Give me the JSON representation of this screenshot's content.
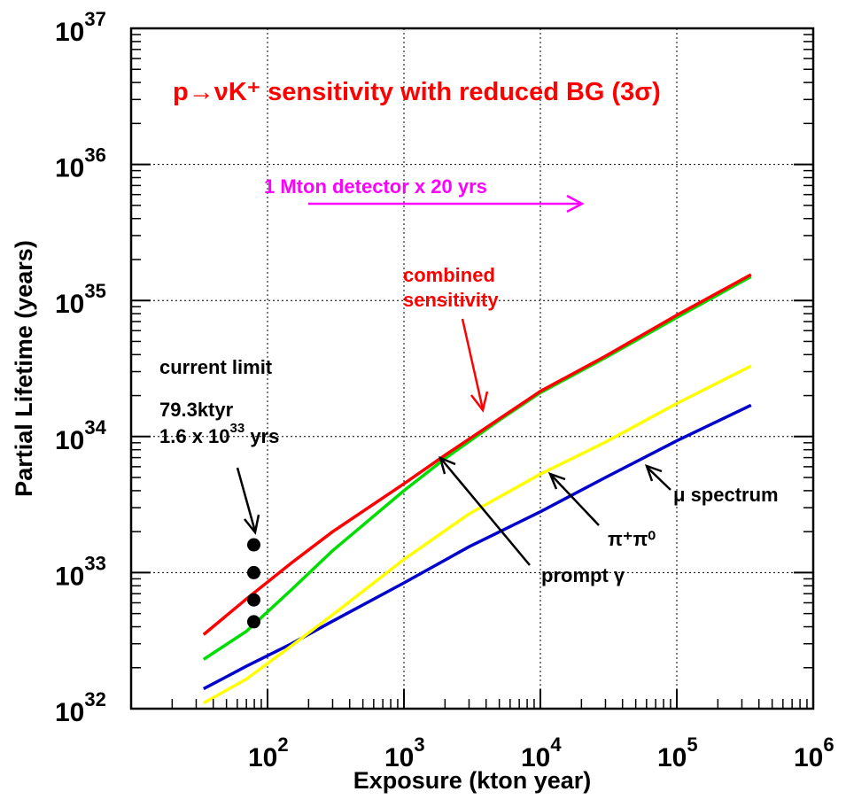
{
  "chart_data": {
    "type": "line",
    "title": "p→νK⁺ sensitivity with reduced BG (3σ)",
    "title_color": "#ff0000",
    "xlabel": "Exposure (kton year)",
    "ylabel": "Partial Lifetime (years)",
    "x_scale": "log",
    "y_scale": "log",
    "xlim": [
      10,
      1000000
    ],
    "ylim": [
      1e+32,
      1e+37
    ],
    "grid": true,
    "x_ticks": [
      {
        "value": 100,
        "base": "10",
        "exp": "2"
      },
      {
        "value": 1000,
        "base": "10",
        "exp": "3"
      },
      {
        "value": 10000,
        "base": "10",
        "exp": "4"
      },
      {
        "value": 100000,
        "base": "10",
        "exp": "5"
      },
      {
        "value": 1000000,
        "base": "10",
        "exp": "6"
      }
    ],
    "y_ticks": [
      {
        "value": 1e+32,
        "base": "10",
        "exp": "32"
      },
      {
        "value": 1e+33,
        "base": "10",
        "exp": "33"
      },
      {
        "value": 1e+34,
        "base": "10",
        "exp": "34"
      },
      {
        "value": 1e+35,
        "base": "10",
        "exp": "35"
      },
      {
        "value": 1e+36,
        "base": "10",
        "exp": "36"
      },
      {
        "value": 1e+37,
        "base": "10",
        "exp": "37"
      }
    ],
    "series": [
      {
        "color": "#0000cc",
        "x": [
          34,
          70,
          150,
          300,
          1000,
          3000,
          10000,
          30000,
          100000,
          350000
        ],
        "y": [
          1.4e+32,
          2.05e+32,
          3e+32,
          4.4e+32,
          8.4e+32,
          1.55e+33,
          2.8e+33,
          5e+33,
          9.3e+33,
          1.7e+34
        ]
      },
      {
        "color": "#ffff00",
        "x": [
          34,
          70,
          150,
          300,
          1000,
          3000,
          10000,
          30000,
          100000,
          350000
        ],
        "y": [
          1.1e+32,
          1.65e+32,
          2.9e+32,
          4.9e+32,
          1.25e+33,
          2.7e+33,
          5.3e+33,
          9.1e+33,
          1.75e+34,
          3.3e+34
        ]
      },
      {
        "color": "#00dd00",
        "x": [
          34,
          70,
          150,
          300,
          1000,
          2000,
          5000,
          10000,
          30000,
          100000,
          350000
        ],
        "y": [
          2.3e+32,
          3.7e+32,
          7.5e+32,
          1.45e+33,
          4e+33,
          6.9e+33,
          1.32e+34,
          2.1e+34,
          3.8e+34,
          7.5e+34,
          1.5e+35
        ]
      },
      {
        "color": "#ff0000",
        "x": [
          34,
          70,
          150,
          300,
          1000,
          2000,
          5000,
          10000,
          30000,
          100000,
          350000
        ],
        "y": [
          3.5e+32,
          6.4e+32,
          1.18e+33,
          2e+33,
          4.5e+33,
          7.3e+33,
          1.35e+34,
          2.15e+34,
          3.9e+34,
          7.8e+34,
          1.55e+35
        ]
      }
    ],
    "points": [
      {
        "x": 79.3,
        "y": 1.6e+33
      },
      {
        "x": 79.3,
        "y": 1e+33
      },
      {
        "x": 79.3,
        "y": 6.3e+32
      },
      {
        "x": 79.3,
        "y": 4.35e+32
      }
    ],
    "annotations": {
      "combined_l1": "combined",
      "combined_l2": "sensitivity",
      "detector": "1 Mton detector x 20 yrs",
      "current_limit": "current limit",
      "limit_exposure": "79.3ktyr",
      "limit_value_base": "1.6 x 10",
      "limit_value_exp": "33",
      "limit_value_unit": " yrs",
      "mu_label": "μ spectrum",
      "pipi_label": "π⁺π⁰",
      "prompt_label": "prompt γ"
    },
    "colors": {
      "combined": "#ff0000",
      "detector": "#ff00ff",
      "text": "#000000"
    }
  }
}
